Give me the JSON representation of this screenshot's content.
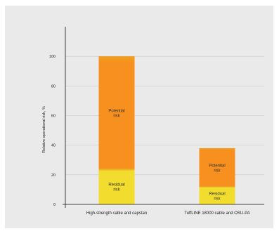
{
  "chart_data": {
    "type": "bar",
    "stacked": true,
    "categories": [
      "High-strength cable and capstan",
      "TuffLINE 18000 cable and OSU-PA"
    ],
    "series": [
      {
        "name": "Residual risk",
        "label_lines": [
          "Residual",
          "risk"
        ],
        "values": [
          24,
          12
        ],
        "color": "#f2dc2e",
        "edge_color": "#e6a21a"
      },
      {
        "name": "Potential risk",
        "label_lines": [
          "Potential",
          "risk"
        ],
        "values": [
          76,
          26
        ],
        "color": "#f7901e",
        "edge_color": "#f0a020"
      }
    ],
    "ylabel": "Relative operational risk, %",
    "xlabel": "",
    "yticks": [
      0,
      20,
      40,
      60,
      80,
      100
    ],
    "ylim": [
      0,
      120
    ],
    "grid": true,
    "legend": "none"
  }
}
